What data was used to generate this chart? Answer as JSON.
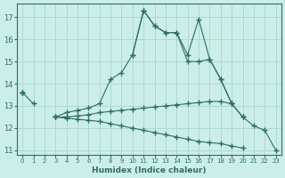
{
  "xlabel": "Humidex (Indice chaleur)",
  "bg_color": "#cceee8",
  "grid_color": "#b0d8d0",
  "line_color": "#2e6e60",
  "xlim": [
    -0.5,
    23.5
  ],
  "ylim": [
    10.8,
    17.6
  ],
  "yticks": [
    11,
    12,
    13,
    14,
    15,
    16,
    17
  ],
  "xticks": [
    0,
    1,
    2,
    3,
    4,
    5,
    6,
    7,
    8,
    9,
    10,
    11,
    12,
    13,
    14,
    15,
    16,
    17,
    18,
    19,
    20,
    21,
    22,
    23
  ],
  "series": [
    [
      13.6,
      13.1,
      null,
      null,
      null,
      null,
      null,
      null,
      null,
      null,
      null,
      null,
      null,
      null,
      null,
      null,
      null,
      null,
      null,
      null,
      null,
      null,
      null,
      null
    ],
    [
      null,
      null,
      null,
      12.5,
      12.7,
      12.8,
      12.9,
      13.1,
      14.2,
      14.5,
      15.3,
      17.3,
      16.6,
      16.3,
      16.3,
      15.3,
      16.9,
      15.1,
      14.2,
      13.1,
      null,
      null,
      null,
      null
    ],
    [
      null,
      null,
      null,
      null,
      null,
      null,
      null,
      null,
      null,
      null,
      15.3,
      17.3,
      16.6,
      16.3,
      16.3,
      15.0,
      15.0,
      15.1,
      14.2,
      13.1,
      12.5,
      12.1,
      11.9,
      11.0
    ],
    [
      13.6,
      null,
      null,
      12.5,
      12.5,
      12.55,
      12.6,
      12.7,
      12.75,
      12.8,
      12.85,
      12.9,
      12.95,
      13.0,
      13.05,
      13.1,
      13.15,
      13.2,
      13.2,
      13.1,
      12.5,
      null,
      null,
      null
    ],
    [
      13.6,
      null,
      null,
      12.5,
      12.45,
      12.4,
      12.35,
      12.3,
      12.2,
      12.1,
      12.0,
      11.9,
      11.8,
      11.7,
      11.6,
      11.5,
      11.4,
      11.35,
      11.3,
      11.2,
      11.1,
      null,
      null,
      null
    ]
  ]
}
